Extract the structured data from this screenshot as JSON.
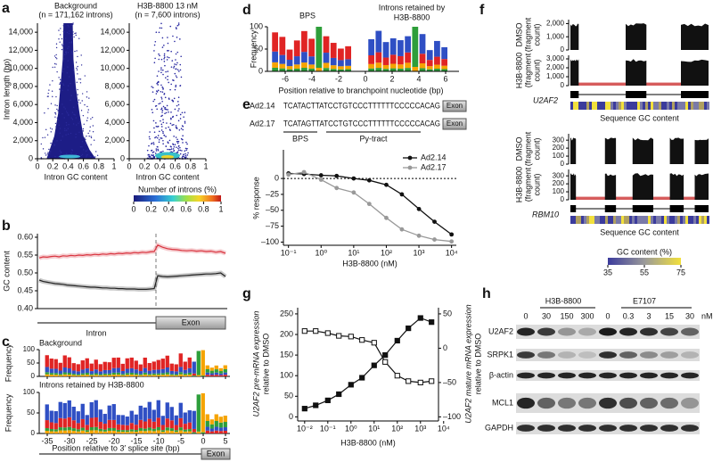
{
  "a": {
    "label": "a",
    "left_title": "Background",
    "left_n": "(n = 171,162 introns)",
    "right_title": "H3B-8800 13 nM",
    "right_n": "(n = 7,600 introns)",
    "y_label": "Intron length (bp)",
    "x_label": "Intron GC content",
    "ylim": [
      0,
      15000
    ],
    "yticks": [
      0,
      {
        "value": 2000,
        "label": "2,000"
      },
      {
        "value": 4000,
        "label": "4,000"
      },
      {
        "value": 6000,
        "label": "6,000"
      },
      {
        "value": 8000,
        "label": "8,000"
      },
      {
        "value": 10000,
        "label": "10,000"
      },
      {
        "value": 12000,
        "label": "12,000"
      },
      {
        "value": 14000,
        "label": "14,000"
      }
    ],
    "xlim": [
      0,
      1
    ],
    "xticks": [
      0,
      0.2,
      0.4,
      0.6,
      0.8,
      1
    ],
    "colorbar_label": "Number of introns (%)",
    "colorbar_lim": [
      0,
      1
    ],
    "colorbar_ticks": [
      0,
      0.2,
      0.4,
      0.6,
      0.8,
      1
    ]
  },
  "b": {
    "label": "b",
    "y_label": "GC content",
    "ylim": [
      0.4,
      0.61
    ],
    "yticks": [
      {
        "value": 0.4,
        "label": "0.40"
      },
      {
        "value": 0.45,
        "label": "0.45"
      },
      {
        "value": 0.5,
        "label": "0.50"
      },
      {
        "value": 0.55,
        "label": "0.55"
      },
      {
        "value": 0.6,
        "label": "0.60"
      }
    ],
    "intron_label": "Intron",
    "exon_label": "Exon",
    "series": [
      {
        "color": "#d9343f",
        "values": [
          0.542,
          0.545,
          0.544,
          0.546,
          0.547,
          0.545,
          0.548,
          0.547,
          0.549,
          0.548,
          0.55,
          0.549,
          0.551,
          0.55,
          0.552,
          0.551,
          0.553,
          0.552,
          0.554,
          0.553,
          0.555,
          0.554,
          0.556,
          0.555,
          0.557,
          0.556,
          0.558,
          0.557,
          0.559,
          0.56,
          0.578,
          0.572,
          0.568,
          0.566,
          0.565,
          0.563,
          0.562,
          0.563,
          0.561,
          0.562,
          0.56,
          0.561,
          0.558,
          0.56,
          0.555
        ]
      },
      {
        "color": "#222222",
        "values": [
          0.48,
          0.476,
          0.474,
          0.472,
          0.47,
          0.469,
          0.468,
          0.466,
          0.465,
          0.464,
          0.463,
          0.462,
          0.461,
          0.46,
          0.46,
          0.459,
          0.458,
          0.458,
          0.457,
          0.457,
          0.456,
          0.456,
          0.455,
          0.455,
          0.455,
          0.454,
          0.454,
          0.454,
          0.455,
          0.456,
          0.492,
          0.49,
          0.489,
          0.49,
          0.491,
          0.492,
          0.493,
          0.494,
          0.495,
          0.496,
          0.497,
          0.497,
          0.498,
          0.5,
          0.49
        ]
      }
    ]
  },
  "c": {
    "label": "c",
    "background_title": "Background",
    "retained_title": "Introns retained by H3B-8800",
    "y_label": "Frequency",
    "ylim": [
      0,
      100
    ],
    "yticks": [
      0,
      50,
      100
    ],
    "xlim": [
      -36,
      6
    ],
    "xticks": [
      -35,
      -30,
      -25,
      -20,
      -15,
      -10,
      -5,
      0,
      5
    ],
    "x_label": "Position relative to 3′ splice site (bp)",
    "exon_label": "Exon"
  },
  "d": {
    "label": "d",
    "bps_title": "BPS",
    "retained_title": [
      "Introns retained by",
      "H3B-8800"
    ],
    "y_label": "Frequency",
    "ylim": [
      0,
      100
    ],
    "yticks": [
      0,
      50,
      100
    ],
    "xlim": [
      -7,
      7
    ],
    "xticks": [
      -6,
      -4,
      -2,
      0,
      2,
      4,
      6
    ],
    "x_label": "Position relative to branchpoint nucleotide (bp)"
  },
  "e": {
    "label": "e",
    "sequences": [
      {
        "name": "Ad2.14",
        "sequence": "TCATACTTATCCTGTCCCTTTTTTCCCCCACAG"
      },
      {
        "name": "Ad2.17",
        "sequence": "TCATAGTTATCCTGTCCCTTTTTTCCCCCACAG"
      }
    ],
    "exon_label": "Exon",
    "bps_label": "BPS",
    "py_label": "Py-tract",
    "y_label": "% response",
    "x_label": "H3B-8800 (nM)",
    "ylim": [
      -105,
      45
    ],
    "yticks": [
      0,
      {
        "value": -25,
        "label": "–25"
      },
      {
        "value": -50,
        "label": "–50"
      },
      {
        "value": -75,
        "label": "–75"
      },
      {
        "value": -100,
        "label": "–100"
      }
    ],
    "xlim": [
      0.07,
      14000
    ],
    "xticks": [
      {
        "value": 0.1,
        "label": "10⁻¹"
      },
      {
        "value": 1,
        "label": "10⁰"
      },
      {
        "value": 10,
        "label": "10¹"
      },
      {
        "value": 100,
        "label": "10²"
      },
      {
        "value": 1000,
        "label": "10³"
      },
      {
        "value": 10000,
        "label": "10⁴"
      }
    ],
    "x": [
      0.1,
      0.3,
      1,
      3,
      10,
      30,
      100,
      300,
      1000,
      3000,
      10000
    ],
    "series": [
      {
        "name": "Ad2.14",
        "color": "#111111",
        "values": [
          8,
          7,
          5,
          4,
          0,
          -3,
          -10,
          -25,
          -48,
          -68,
          -88
        ]
      },
      {
        "name": "Ad2.17",
        "color": "#999999",
        "values": [
          6,
          10,
          -2,
          -15,
          -22,
          -40,
          -62,
          -80,
          -90,
          -96,
          -99
        ]
      }
    ]
  },
  "f": {
    "label": "f",
    "genes": [
      {
        "name": "U2AF2",
        "exons": [
          [
            0,
            0.06
          ],
          [
            0.4,
            0.55
          ],
          [
            0.8,
            1
          ]
        ],
        "tracks": [
          {
            "condition": "DMSO",
            "color": "#5566bb",
            "ylim": [
              0,
              2300
            ],
            "yticks": [
              0,
              {
                "value": 1000,
                "label": "1,000"
              },
              {
                "value": 2000,
                "label": "2,000"
              }
            ]
          },
          {
            "condition": "H3B-8800",
            "color": "#cc3333",
            "ylim": [
              0,
              3400
            ],
            "yticks": [
              0,
              {
                "value": 1000,
                "label": "1,000"
              },
              {
                "value": 2000,
                "label": "2,000"
              },
              {
                "value": 3000,
                "label": "3,000"
              }
            ]
          }
        ]
      },
      {
        "name": "RBM10",
        "exons": [
          [
            0,
            0.04
          ],
          [
            0.25,
            0.33
          ],
          [
            0.45,
            0.6
          ],
          [
            0.72,
            0.82
          ],
          [
            0.9,
            1
          ]
        ],
        "tracks": [
          {
            "condition": "DMSO",
            "color": "#5566bb",
            "ylim": [
              0,
              380
            ],
            "yticks": [
              0,
              100,
              200,
              300
            ]
          },
          {
            "condition": "H3B-8800",
            "color": "#cc3333",
            "ylim": [
              0,
              380
            ],
            "yticks": [
              0,
              100,
              200,
              300
            ]
          }
        ]
      }
    ],
    "unit": [
      "(fragment",
      "count)"
    ],
    "gc_label": "Sequence GC content",
    "colorbar_label": "GC content (%)",
    "colorbar_lim": [
      35,
      75
    ],
    "colorbar_ticks": [
      35,
      55,
      75
    ]
  },
  "g": {
    "label": "g",
    "y_label": [
      "U2AF2 pre-mRNA expression",
      "relative to DMSO"
    ],
    "y2_label": [
      "U2AF2 mature mRNA expression",
      "relative to DMSO"
    ],
    "x_label": "H3B-8800 (nM)",
    "ylim": [
      -10,
      265
    ],
    "yticks": [
      0,
      50,
      100,
      150,
      200,
      250
    ],
    "y2lim": [
      -106,
      59
    ],
    "y2ticks": [
      50,
      0,
      {
        "value": -50,
        "label": "–50"
      },
      {
        "value": -100,
        "label": "–100"
      }
    ],
    "xlim": [
      0.005,
      6000
    ],
    "xticks": [
      {
        "value": 0.01,
        "label": "10⁻²"
      },
      {
        "value": 0.1,
        "label": "10⁻¹"
      },
      {
        "value": 1,
        "label": "10⁰"
      },
      {
        "value": 10,
        "label": "10¹"
      },
      {
        "value": 100,
        "label": "10²"
      },
      {
        "value": 1000,
        "label": "10³"
      },
      {
        "value": 10000,
        "label": "10⁴"
      }
    ],
    "x": [
      0.01,
      0.03,
      0.1,
      0.3,
      1,
      3,
      10,
      30,
      100,
      300,
      1000,
      3000
    ],
    "series": [
      {
        "color": "#111111",
        "values": [
          20,
          28,
          40,
          55,
          78,
          95,
          125,
          150,
          185,
          215,
          240,
          230
        ]
      },
      {
        "color": "#111111",
        "axis": "y2",
        "values": [
          25,
          25,
          22,
          18,
          17,
          12,
          8,
          -20,
          -40,
          -48,
          -50,
          -48
        ]
      }
    ]
  },
  "h": {
    "label": "h",
    "group_left": "H3B-8800",
    "group_right": "E7107",
    "lanes": [
      "0",
      "30",
      "150",
      "300",
      "0",
      "0.3",
      "3",
      "15",
      "30"
    ],
    "unit": "nM",
    "rows": [
      "U2AF2",
      "SRPK1",
      "β-actin",
      "MCL1",
      "GAPDH"
    ]
  }
}
